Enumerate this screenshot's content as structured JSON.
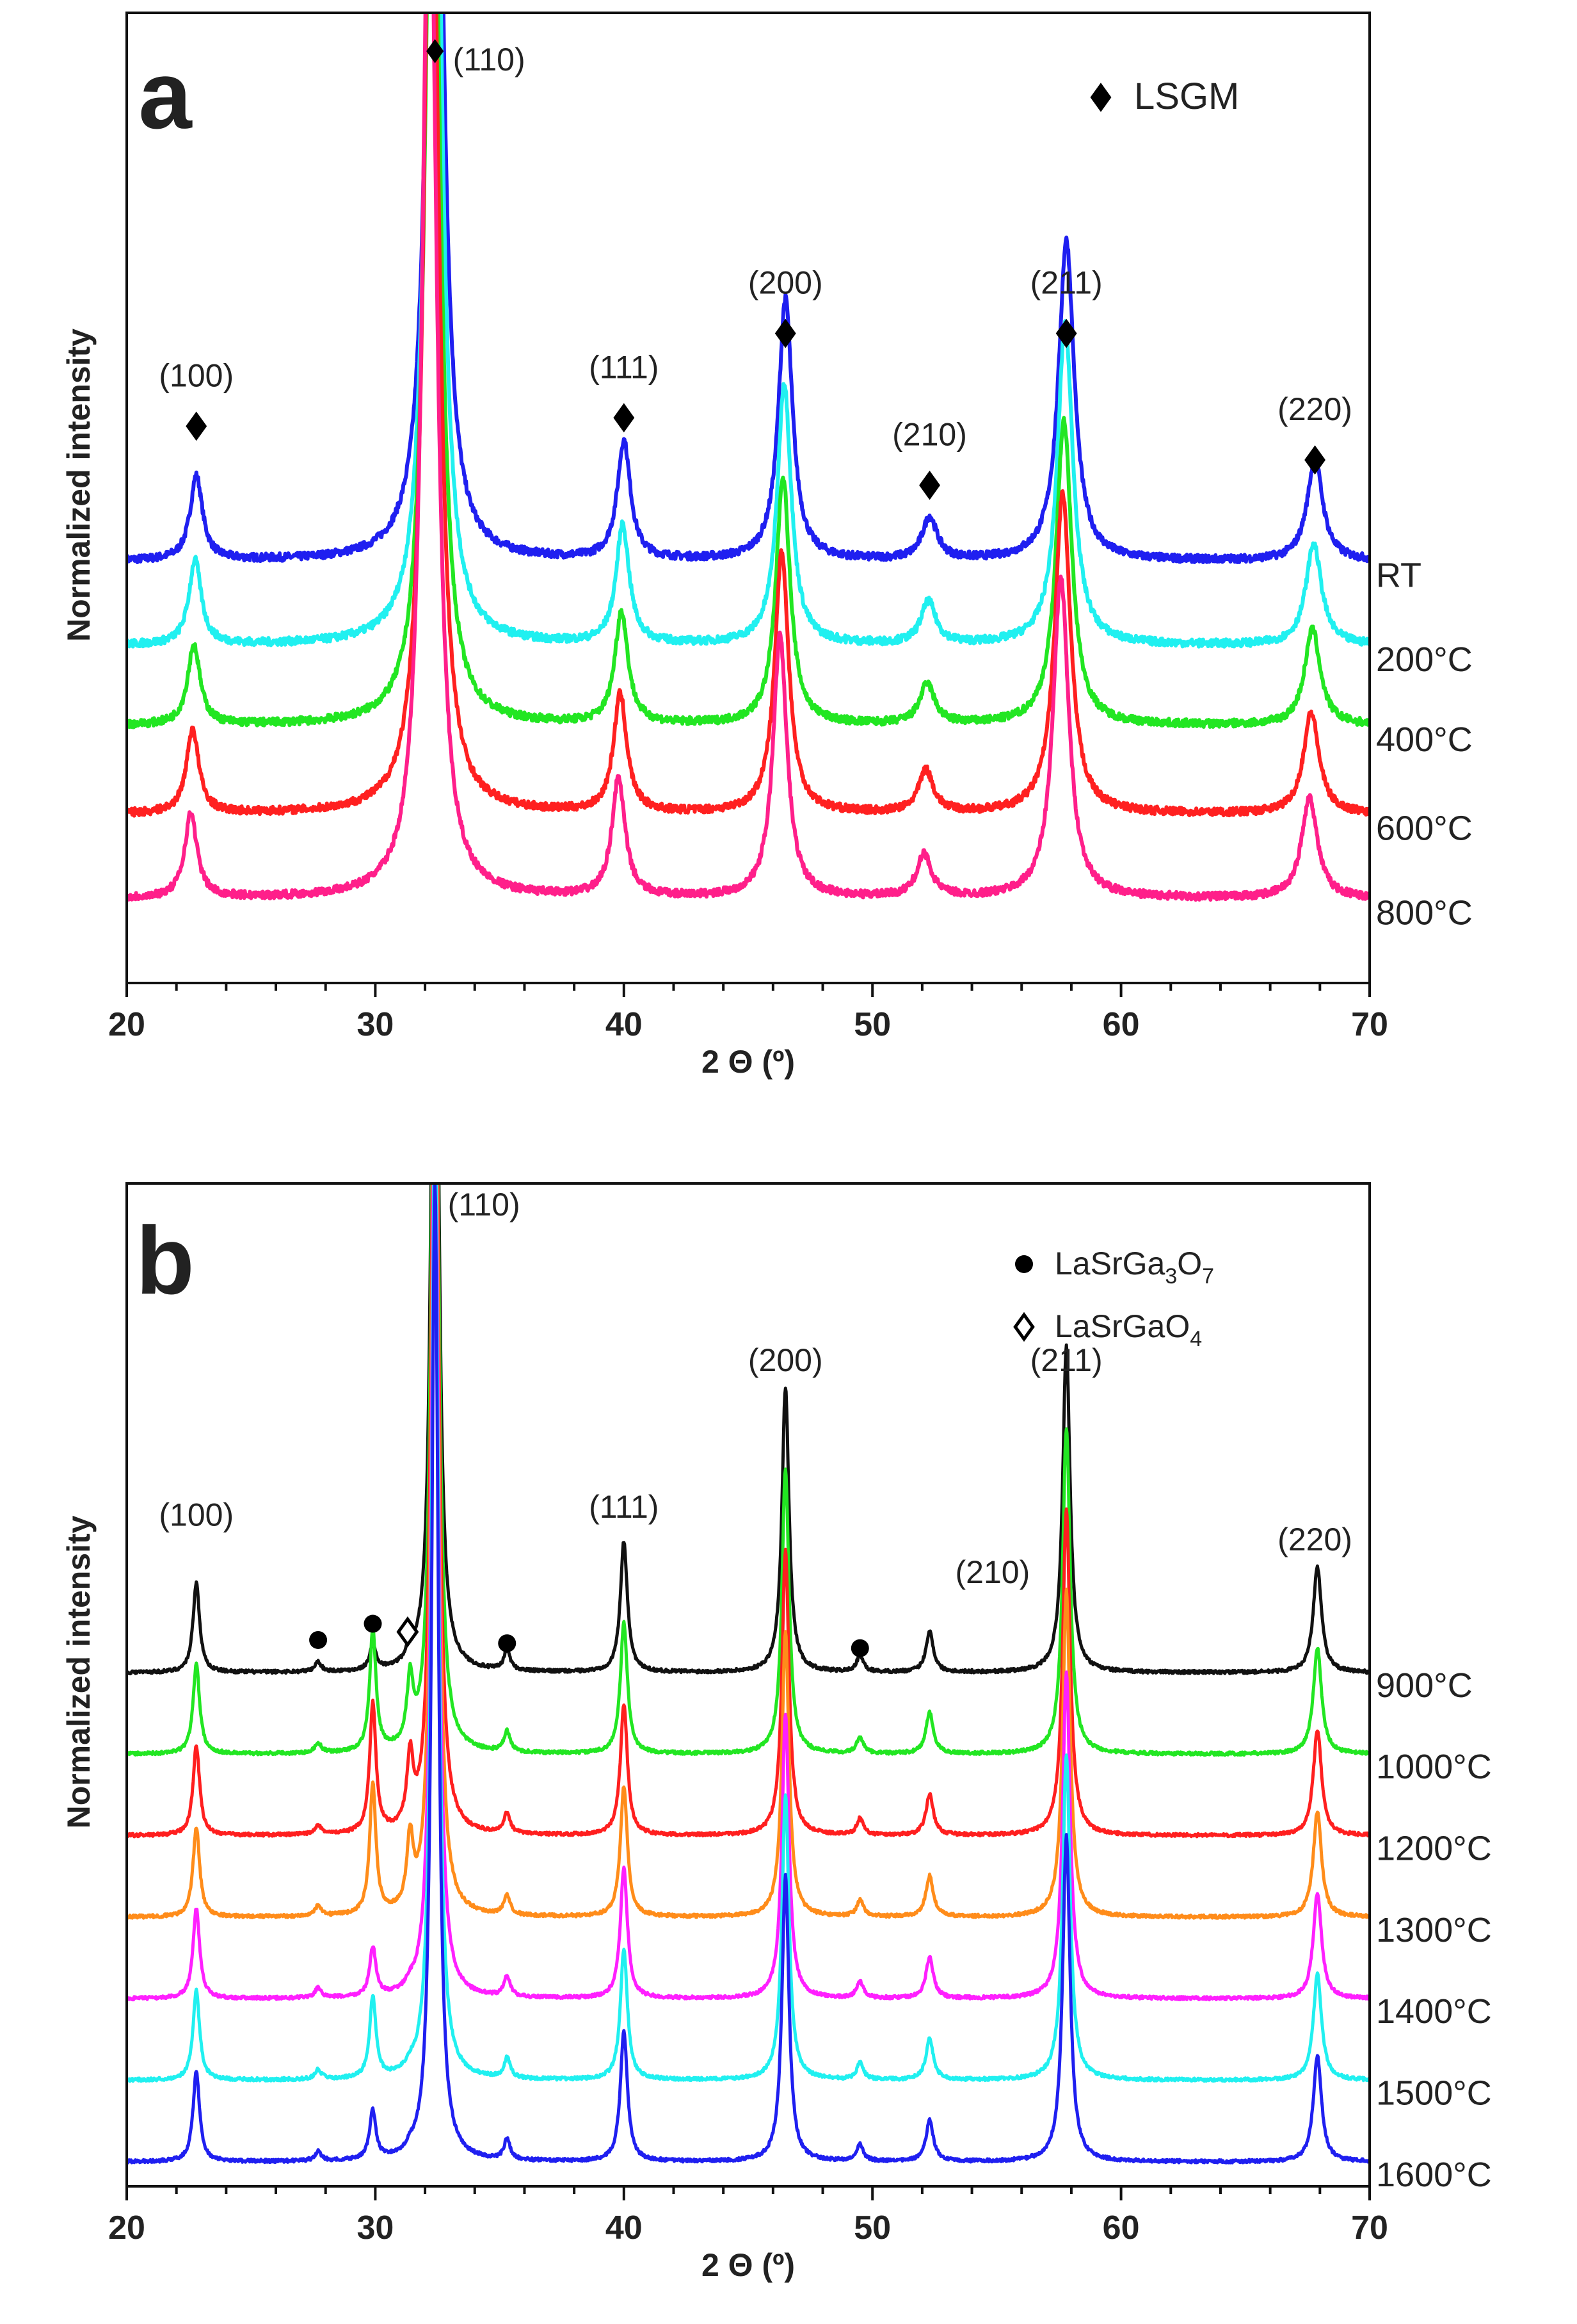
{
  "chart_data": [
    {
      "type": "line",
      "panel_letter": "a",
      "xlabel": "2 Θ (º)",
      "ylabel": "Normalized intensity",
      "xlim": [
        20,
        70
      ],
      "xticks": [
        "20",
        "30",
        "40",
        "50",
        "60",
        "70"
      ],
      "peaks": [
        {
          "pos": 22.8,
          "height": 1.0,
          "width": 0.3
        },
        {
          "pos": 32.4,
          "height": 13.0,
          "width": 0.34
        },
        {
          "pos": 40.0,
          "height": 1.4,
          "width": 0.32
        },
        {
          "pos": 46.5,
          "height": 3.1,
          "width": 0.34
        },
        {
          "pos": 52.3,
          "height": 0.5,
          "width": 0.36
        },
        {
          "pos": 57.8,
          "height": 3.8,
          "width": 0.38
        },
        {
          "pos": 67.8,
          "height": 1.2,
          "width": 0.38
        }
      ],
      "series": [
        {
          "name": "RT",
          "color": "#1f1ff0",
          "offset": 4.0,
          "shift": 0.0,
          "amp": 1.0
        },
        {
          "name": "200°C",
          "color": "#20f0f0",
          "offset": 3.0,
          "shift": -0.05,
          "amp": 1.0
        },
        {
          "name": "400°C",
          "color": "#22e622",
          "offset": 2.05,
          "shift": -0.1,
          "amp": 0.95
        },
        {
          "name": "600°C",
          "color": "#ff2020",
          "offset": 1.0,
          "shift": -0.15,
          "amp": 1.0
        },
        {
          "name": "800°C",
          "color": "#ff1f8a",
          "offset": 0.0,
          "shift": -0.22,
          "amp": 1.0
        }
      ],
      "ylim": [
        -1.0,
        10.5
      ],
      "peak_labels": [
        {
          "text": "(100)",
          "x": 22.8,
          "y": 5.6,
          "marker": "filled-diamond"
        },
        {
          "text": "(110)",
          "x": 32.4,
          "y": 10.0,
          "marker": "filled-diamond"
        },
        {
          "text": "(111)",
          "x": 40.0,
          "y": 5.7,
          "marker": "filled-diamond"
        },
        {
          "text": "(200)",
          "x": 46.5,
          "y": 6.7,
          "marker": "filled-diamond"
        },
        {
          "text": "(210)",
          "x": 52.3,
          "y": 4.9,
          "marker": "filled-diamond"
        },
        {
          "text": "(211)",
          "x": 57.8,
          "y": 6.7,
          "marker": "filled-diamond"
        },
        {
          "text": "(220)",
          "x": 67.8,
          "y": 5.2,
          "marker": "filled-diamond"
        }
      ],
      "legend": [
        {
          "label": "LSGM",
          "marker": "filled-diamond"
        }
      ]
    },
    {
      "type": "line",
      "panel_letter": "b",
      "xlabel": "2 Θ (º)",
      "ylabel": "Normalized intensity",
      "xlim": [
        20,
        70
      ],
      "xticks": [
        "20",
        "30",
        "40",
        "50",
        "60",
        "70"
      ],
      "peaks": [
        {
          "pos": 22.8,
          "height": 1.1,
          "width": 0.16
        },
        {
          "pos": 27.7,
          "height": 0.12,
          "width": 0.15
        },
        {
          "pos": 29.9,
          "height": 1.0,
          "width": 0.15
        },
        {
          "pos": 31.4,
          "height": 0.6,
          "width": 0.15
        },
        {
          "pos": 32.4,
          "height": 12.0,
          "width": 0.16
        },
        {
          "pos": 35.3,
          "height": 0.25,
          "width": 0.15
        },
        {
          "pos": 40.0,
          "height": 1.6,
          "width": 0.17
        },
        {
          "pos": 46.5,
          "height": 3.5,
          "width": 0.17
        },
        {
          "pos": 49.5,
          "height": 0.2,
          "width": 0.16
        },
        {
          "pos": 52.3,
          "height": 0.5,
          "width": 0.18
        },
        {
          "pos": 57.8,
          "height": 4.0,
          "width": 0.18
        },
        {
          "pos": 67.9,
          "height": 1.3,
          "width": 0.2
        }
      ],
      "series": [
        {
          "name": "900°C",
          "color": "#111111",
          "offset": 6.0,
          "shift": 0.0,
          "amp": 1.0,
          "phase_amp": [
            1,
            1,
            0.3,
            0.3,
            1,
            1,
            1,
            1,
            1,
            1,
            1,
            1
          ]
        },
        {
          "name": "1000°C",
          "color": "#22e622",
          "offset": 5.0,
          "shift": 0.0,
          "amp": 1.0,
          "phase_amp": [
            1,
            1,
            1.5,
            1.3,
            1,
            1,
            1,
            1,
            1,
            1,
            1,
            1
          ]
        },
        {
          "name": "1200°C",
          "color": "#ff1f1f",
          "offset": 4.0,
          "shift": 0.0,
          "amp": 1.0,
          "phase_amp": [
            1,
            1,
            1.6,
            1.4,
            1,
            1,
            1,
            1,
            1,
            1,
            1,
            1
          ]
        },
        {
          "name": "1300°C",
          "color": "#ff8c1a",
          "offset": 3.0,
          "shift": 0.0,
          "amp": 1.0,
          "phase_amp": [
            1,
            1,
            1.6,
            1.4,
            1,
            1,
            1,
            1,
            1,
            1,
            1,
            1
          ]
        },
        {
          "name": "1400°C",
          "color": "#ff1fff",
          "offset": 2.0,
          "shift": 0.0,
          "amp": 1.0,
          "phase_amp": [
            1,
            1,
            0.6,
            0.1,
            1,
            1,
            1,
            1,
            1,
            1,
            1,
            1
          ]
        },
        {
          "name": "1500°C",
          "color": "#20f0f0",
          "offset": 1.0,
          "shift": 0.0,
          "amp": 1.0,
          "phase_amp": [
            1,
            1,
            1.0,
            0.1,
            1,
            1,
            1,
            1,
            1,
            1,
            1,
            1
          ]
        },
        {
          "name": "1600°C",
          "color": "#1f1ff0",
          "offset": 0.0,
          "shift": 0.0,
          "amp": 1.0,
          "phase_amp": [
            1,
            1,
            0.6,
            0.1,
            1,
            1,
            1,
            1,
            1,
            1,
            1,
            1
          ]
        }
      ],
      "ylim": [
        -0.3,
        12.0
      ],
      "peak_labels": [
        {
          "text": "(100)",
          "x": 22.8,
          "y": 7.8,
          "marker": "none"
        },
        {
          "text": "(110)",
          "x": 32.4,
          "y": 11.75,
          "marker": "none"
        },
        {
          "text": "(111)",
          "x": 40.0,
          "y": 7.9,
          "marker": "none"
        },
        {
          "text": "(200)",
          "x": 46.5,
          "y": 9.7,
          "marker": "none"
        },
        {
          "text": "(210)",
          "x": 52.3,
          "y": 7.1,
          "marker": "none"
        },
        {
          "text": "(211)",
          "x": 57.8,
          "y": 9.7,
          "marker": "none"
        },
        {
          "text": "(220)",
          "x": 67.8,
          "y": 7.5,
          "marker": "none"
        }
      ],
      "phase_markers": [
        {
          "x": 27.7,
          "y": 6.4,
          "marker": "filled-circle"
        },
        {
          "x": 29.9,
          "y": 6.6,
          "marker": "filled-circle"
        },
        {
          "x": 31.3,
          "y": 6.5,
          "marker": "open-diamond"
        },
        {
          "x": 35.3,
          "y": 6.36,
          "marker": "filled-circle"
        },
        {
          "x": 49.5,
          "y": 6.3,
          "marker": "filled-circle"
        }
      ],
      "legend": [
        {
          "label": "LaSrGa",
          "sub1": "3",
          "mid": "O",
          "sub2": "7",
          "marker": "filled-circle"
        },
        {
          "label": "LaSrGaO",
          "sub1": "4",
          "mid": "",
          "sub2": "",
          "marker": "open-diamond"
        }
      ]
    }
  ]
}
